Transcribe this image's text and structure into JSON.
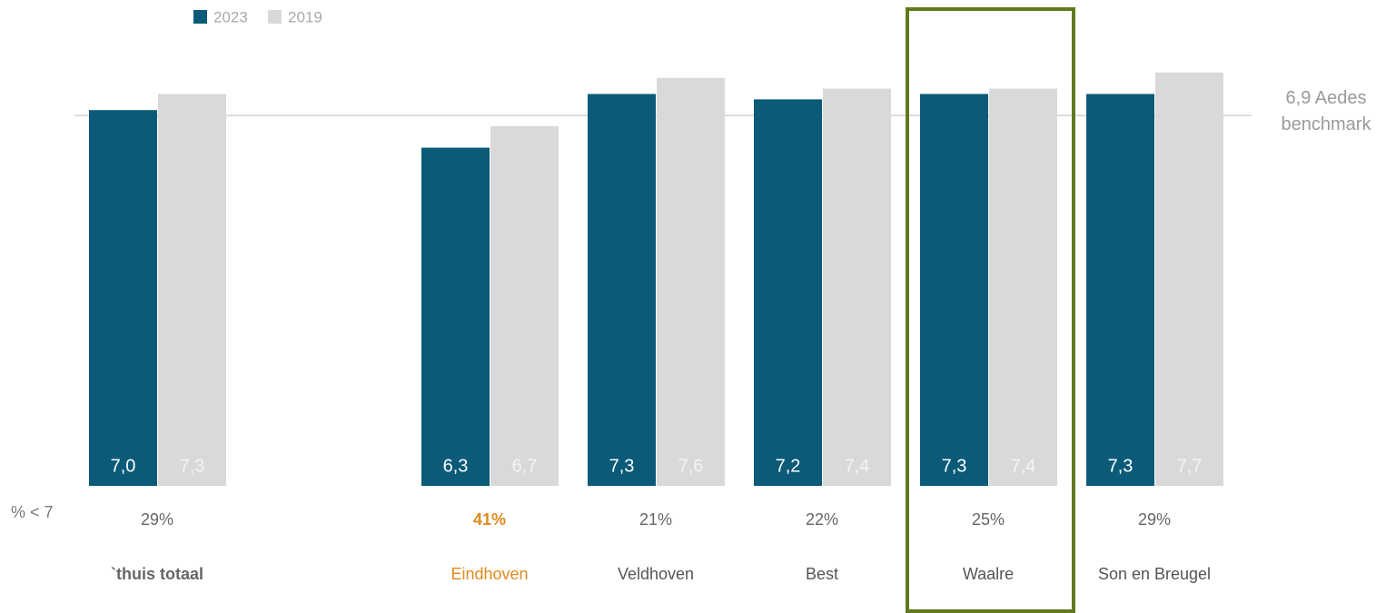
{
  "chart_data": {
    "type": "bar",
    "categories": [
      "`thuis totaal",
      null,
      "Eindhoven",
      "Veldhoven",
      "Best",
      "Waalre",
      "Son en Breugel"
    ],
    "series": [
      {
        "name": "2023",
        "color": "#0b5a78",
        "values": [
          7.0,
          null,
          6.3,
          7.3,
          7.2,
          7.3,
          7.3
        ],
        "value_labels": [
          "7,0",
          null,
          "6,3",
          "7,3",
          "7,2",
          "7,3",
          "7,3"
        ]
      },
      {
        "name": "2019",
        "color": "#d9d9d9",
        "values": [
          7.3,
          null,
          6.7,
          7.6,
          7.4,
          7.4,
          7.7
        ],
        "value_labels": [
          "7,3",
          null,
          "6,7",
          "7,6",
          "7,4",
          "7,4",
          "7,7"
        ]
      }
    ],
    "ylim": [
      0,
      9
    ],
    "benchmark": {
      "value": 6.9,
      "label": "6,9 Aedes benchmark"
    },
    "pct_below_7": {
      "label": "% < 7",
      "values": [
        29,
        null,
        41,
        21,
        22,
        25,
        29
      ],
      "value_labels": [
        "29%",
        null,
        "41%",
        "21%",
        "22%",
        "25%",
        "29%"
      ]
    },
    "emphasis_category": "Eindhoven",
    "emphasis_color": "#e08a1e",
    "highlight_category": "Waalre",
    "highlight_color": "#5f7a1e",
    "legend": "top-left"
  }
}
